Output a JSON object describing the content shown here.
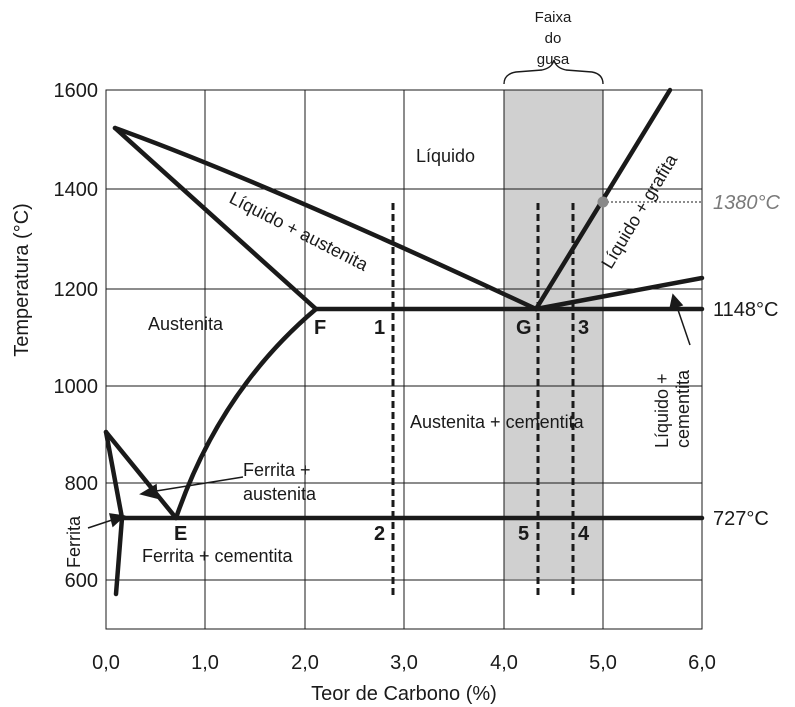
{
  "axes": {
    "xlabel": "Teor de Carbono (%)",
    "ylabel": "Temperatura (°C)",
    "xlim": [
      0,
      6
    ],
    "ylim": [
      500,
      1600
    ],
    "xticks": [
      "0,0",
      "1,0",
      "2,0",
      "3,0",
      "4,0",
      "5,0",
      "6,0"
    ],
    "yticks": [
      "600",
      "800",
      "1000",
      "1200",
      "1400",
      "1600"
    ]
  },
  "band": {
    "label_lines": [
      "Faixa",
      "do",
      "gusa"
    ],
    "x_from": 4.0,
    "x_to": 5.0,
    "y_from": 600,
    "y_to": 1600,
    "color": "#d0d0d0"
  },
  "regions": {
    "liquido": "Líquido",
    "liq_aust": "Líquido + austenita",
    "liq_graf": "Líquido + grafita",
    "austenita": "Austenita",
    "aust_cem": "Austenita + cementita",
    "ferr_aust_1": "Ferrita +",
    "ferr_aust_2": "austenita",
    "ferr_cem": "Ferrita + cementita",
    "ferrita": "Ferrita",
    "liq_cem_1": "Líquido +",
    "liq_cem_2": "cementita"
  },
  "points": {
    "F": "F",
    "G": "G",
    "E": "E",
    "p1": "1",
    "p2": "2",
    "p3": "3",
    "p4": "4",
    "p5": "5"
  },
  "temps": {
    "t1380": "1380",
    "t1148": "1148",
    "t727": "727",
    "unit": "°C"
  },
  "colors": {
    "line": "#1a1a1a",
    "grid": "#1a1a1a",
    "marker": "#8a8a8a",
    "highlight": "#7a7a7a"
  }
}
